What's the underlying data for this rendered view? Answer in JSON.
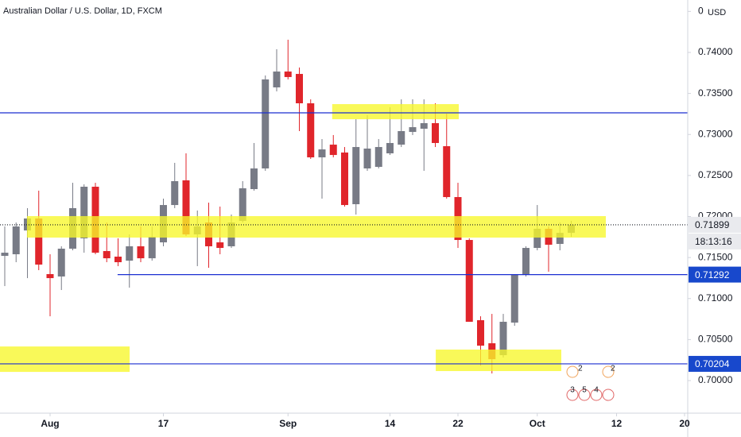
{
  "chart_data": {
    "type": "candlestick",
    "title": "Australian Dollar / U.S. Dollar, 1D, FXCM",
    "currency": "USD",
    "up_color": "#787b86",
    "down_color": "#e0252b",
    "open": [
      0.7152,
      0.7154,
      0.7183,
      0.71976,
      0.71298,
      0.71269,
      0.71608,
      0.71734,
      0.72363,
      0.71579,
      0.71511,
      0.71462,
      0.71637,
      0.71491,
      0.71685,
      0.7214,
      0.72441,
      0.71782,
      0.71927,
      0.71685,
      0.71637,
      0.71947,
      0.72334,
      0.72586,
      0.73574,
      0.73767,
      0.73738,
      0.7338,
      0.72721,
      0.72876,
      0.7278,
      0.7215,
      0.72586,
      0.72605,
      0.7277,
      0.72876,
      0.73031,
      0.7307,
      0.73138,
      0.72857,
      0.72237,
      0.71714,
      0.70736,
      0.70455,
      0.7031,
      0.70707,
      0.71298,
      0.71617,
      0.7185,
      0.71666,
      0.71801
    ],
    "high": [
      0.71879,
      0.71927,
      0.72102,
      0.72315,
      0.7154,
      0.71637,
      0.72411,
      0.72392,
      0.72411,
      0.71927,
      0.71734,
      0.71782,
      0.71879,
      0.71879,
      0.72218,
      0.72654,
      0.7277,
      0.72073,
      0.72169,
      0.72121,
      0.72024,
      0.72431,
      0.72896,
      0.73719,
      0.74039,
      0.74155,
      0.73816,
      0.73428,
      0.72944,
      0.72993,
      0.72847,
      0.73186,
      0.73235,
      0.72944,
      0.73332,
      0.73428,
      0.73428,
      0.73428,
      0.7338,
      0.73254,
      0.72411,
      0.71734,
      0.70784,
      0.70813,
      0.70813,
      0.71298,
      0.71637,
      0.7214,
      0.71879,
      0.71927,
      0.71947
    ],
    "low": [
      0.71152,
      0.71443,
      0.71249,
      0.71346,
      0.70784,
      0.71104,
      0.71588,
      0.71559,
      0.7154,
      0.71443,
      0.71395,
      0.71133,
      0.71443,
      0.71462,
      0.71637,
      0.72102,
      0.71763,
      0.71395,
      0.71375,
      0.7154,
      0.71617,
      0.71927,
      0.72315,
      0.72557,
      0.73525,
      0.73671,
      0.73041,
      0.72702,
      0.72218,
      0.72721,
      0.72121,
      0.72024,
      0.72557,
      0.72586,
      0.7275,
      0.72847,
      0.72993,
      0.72557,
      0.72847,
      0.72218,
      0.71617,
      0.70717,
      0.70184,
      0.70087,
      0.70281,
      0.70668,
      0.71269,
      0.71588,
      0.71327,
      0.71588,
      0.71753
    ],
    "close": [
      0.71559,
      0.71879,
      0.71976,
      0.71414,
      0.71249,
      0.71608,
      0.72102,
      0.72363,
      0.71559,
      0.71491,
      0.71443,
      0.71637,
      0.71491,
      0.71753,
      0.7214,
      0.72431,
      0.71782,
      0.71879,
      0.71637,
      0.71617,
      0.71927,
      0.72344,
      0.72586,
      0.73671,
      0.73767,
      0.737,
      0.7338,
      0.72721,
      0.72818,
      0.7275,
      0.7214,
      0.72847,
      0.72828,
      0.72847,
      0.72896,
      0.73041,
      0.73089,
      0.73138,
      0.72896,
      0.72237,
      0.71714,
      0.70717,
      0.70426,
      0.70261,
      0.70717,
      0.71288,
      0.71617,
      0.7185,
      0.71656,
      0.71801,
      0.71899
    ],
    "xlim": [
      -0.42,
      60.28
    ],
    "xticks": [
      {
        "value": 4,
        "label": "Aug"
      },
      {
        "value": 14,
        "label": "17"
      },
      {
        "value": 25,
        "label": "Sep"
      },
      {
        "value": 34,
        "label": "14"
      },
      {
        "value": 40,
        "label": "22"
      },
      {
        "value": 47,
        "label": "Oct"
      },
      {
        "value": 54,
        "label": "12"
      },
      {
        "value": 60,
        "label": "20"
      }
    ],
    "ylim": [
      0.69603,
      0.74639
    ],
    "yticks": [
      {
        "value": 0.7,
        "label": "0.70000"
      },
      {
        "value": 0.705,
        "label": "0.70500"
      },
      {
        "value": 0.71,
        "label": "0.71000"
      },
      {
        "value": 0.715,
        "label": "0.71500"
      },
      {
        "value": 0.72,
        "label": "0.72000"
      },
      {
        "value": 0.725,
        "label": "0.72500"
      },
      {
        "value": 0.73,
        "label": "0.73000"
      },
      {
        "value": 0.735,
        "label": "0.73500"
      },
      {
        "value": 0.74,
        "label": "0.74000"
      },
      {
        "value": 0.745,
        "label": "0.74500"
      }
    ],
    "zone_color": "#f7f72a",
    "zones": [
      {
        "x": [
          28.9,
          40.07
        ],
        "y": [
          0.7337,
          0.73186
        ]
      },
      {
        "x": [
          1.96,
          53.05
        ],
        "y": [
          0.72005,
          0.71743
        ]
      },
      {
        "x": [
          -0.42,
          11.02
        ],
        "y": [
          0.70416,
          0.70106
        ]
      },
      {
        "x": [
          38.04,
          49.12
        ],
        "y": [
          0.70378,
          0.70116
        ]
      }
    ],
    "lines": [
      {
        "value": 0.73264,
        "color": "#1b2fd1"
      },
      {
        "value": 0.71292,
        "color": "#1b2fd1",
        "start": 9.96,
        "label": true
      },
      {
        "value": 0.70204,
        "color": "#1b2fd1",
        "label": true
      },
      {
        "value": 0.71899,
        "color": "#131722",
        "style": "dotted",
        "label": true,
        "countdown": "18:13:16"
      }
    ],
    "events": [
      "2",
      "3",
      "5",
      "4",
      "2"
    ]
  }
}
